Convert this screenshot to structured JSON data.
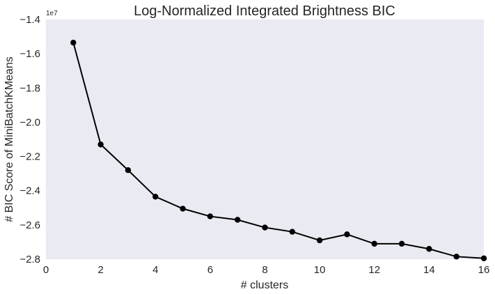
{
  "chart_data": {
    "type": "line",
    "title": "Log-Normalized Integrated Brightness BIC",
    "xlabel": "# clusters",
    "ylabel": "# BIC Score of MiniBatchKMeans",
    "y_offset_label": "1e7",
    "xlim": [
      0,
      16
    ],
    "ylim": [
      -2.8,
      -1.4
    ],
    "x_ticks": [
      0,
      2,
      4,
      6,
      8,
      10,
      12,
      14,
      16
    ],
    "x_tick_labels": [
      "0",
      "2",
      "4",
      "6",
      "8",
      "10",
      "12",
      "14",
      "16"
    ],
    "y_ticks": [
      -2.8,
      -2.6,
      -2.4,
      -2.2,
      -2.0,
      -1.8,
      -1.6,
      -1.4
    ],
    "y_tick_labels": [
      "−2.8",
      "−2.6",
      "−2.4",
      "−2.2",
      "−2.0",
      "−1.8",
      "−1.6",
      "−1.4"
    ],
    "grid": false,
    "background_color": "#eaeaf2",
    "line_color": "#000000",
    "series": [
      {
        "x": [
          1,
          2,
          3,
          4,
          5,
          6,
          7,
          8,
          9,
          10,
          11,
          12,
          13,
          14,
          15,
          16
        ],
        "y": [
          -1.535,
          -2.13,
          -2.28,
          -2.435,
          -2.505,
          -2.55,
          -2.57,
          -2.615,
          -2.64,
          -2.69,
          -2.655,
          -2.71,
          -2.71,
          -2.74,
          -2.785,
          -2.795
        ]
      }
    ]
  }
}
